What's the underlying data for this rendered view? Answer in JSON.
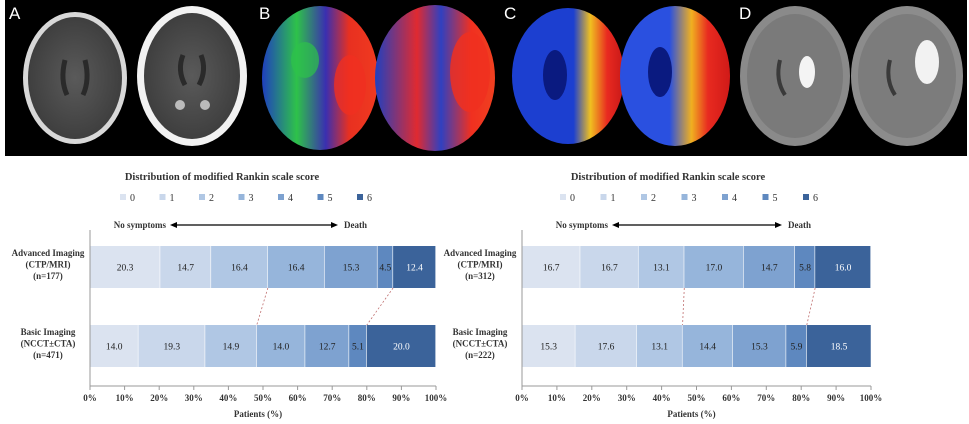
{
  "figure": {
    "panels": [
      {
        "letter": "A",
        "modality": "non-contrast CT",
        "palette": "gray"
      },
      {
        "letter": "B",
        "modality": "CT perfusion map",
        "palette": "perfusion-rainbow"
      },
      {
        "letter": "C",
        "modality": "CT perfusion map",
        "palette": "perfusion-blue-red"
      },
      {
        "letter": "D",
        "modality": "diffusion MRI",
        "palette": "dwi-gray"
      }
    ]
  },
  "colors": {
    "mrs": [
      "#dbe3f0",
      "#c9d7eb",
      "#b0c7e4",
      "#96b5db",
      "#7ea2d0",
      "#5e88bf",
      "#3b639a"
    ],
    "text": "#333333",
    "axis": "#999999"
  },
  "chart_data": [
    {
      "type": "bar",
      "orientation": "horizontal",
      "stacked": true,
      "title": "Distribution of modified Rankin scale score",
      "legend": [
        "0",
        "1",
        "2",
        "3",
        "4",
        "5",
        "6"
      ],
      "legend_position": "top",
      "arrow_left_label": "No symptoms",
      "arrow_right_label": "Death",
      "categories": [
        {
          "label_lines": [
            "Advanced Imaging",
            "(CTP/MRI)",
            "(n=177)"
          ],
          "values": [
            20.3,
            14.7,
            16.4,
            16.4,
            15.3,
            4.5,
            12.4
          ]
        },
        {
          "label_lines": [
            "Basic Imaging",
            "(NCCT±CTA)",
            "(n=471)"
          ],
          "values": [
            14.0,
            19.3,
            14.9,
            14.0,
            12.7,
            5.1,
            20.0
          ]
        }
      ],
      "data_labels": [
        [
          "20.3",
          "14.7",
          "16.4",
          "16.4",
          "15.3",
          "4.5",
          "12.4"
        ],
        [
          "14.0",
          "19.3",
          "14.9",
          "14.0",
          "12.7",
          "5.1",
          "20.0"
        ]
      ],
      "connectors": [
        [
          0,
          3
        ],
        [
          0,
          6
        ]
      ],
      "xlabel": "Patients (%)",
      "xlim": [
        0,
        100
      ],
      "xticks": [
        "0%",
        "10%",
        "20%",
        "30%",
        "40%",
        "50%",
        "60%",
        "70%",
        "80%",
        "90%",
        "100%"
      ]
    },
    {
      "type": "bar",
      "orientation": "horizontal",
      "stacked": true,
      "title": "Distribution of modified Rankin scale score",
      "legend": [
        "0",
        "1",
        "2",
        "3",
        "4",
        "5",
        "6"
      ],
      "legend_position": "top",
      "arrow_left_label": "No symptoms",
      "arrow_right_label": "Death",
      "categories": [
        {
          "label_lines": [
            "Advanced Imaging",
            "(CTP/MRI)",
            "(n=312)"
          ],
          "values": [
            16.7,
            16.7,
            13.1,
            17.0,
            14.7,
            5.8,
            16.0
          ]
        },
        {
          "label_lines": [
            "Basic Imaging",
            "(NCCT±CTA)",
            "(n=222)"
          ],
          "values": [
            15.3,
            17.6,
            13.1,
            14.4,
            15.3,
            5.9,
            18.5
          ]
        }
      ],
      "data_labels": [
        [
          "16.7",
          "16.7",
          "13.1",
          "17.0",
          "14.7",
          "5.8",
          "16.0"
        ],
        [
          "15.3",
          "17.6",
          "13.1",
          "14.4",
          "15.3",
          "5.9",
          "18.5"
        ]
      ],
      "connectors": [
        [
          0,
          3
        ],
        [
          0,
          6
        ]
      ],
      "xlabel": "Patients (%)",
      "xlim": [
        0,
        100
      ],
      "xticks": [
        "0%",
        "10%",
        "20%",
        "30%",
        "40%",
        "50%",
        "60%",
        "70%",
        "80%",
        "90%",
        "100%"
      ]
    }
  ]
}
